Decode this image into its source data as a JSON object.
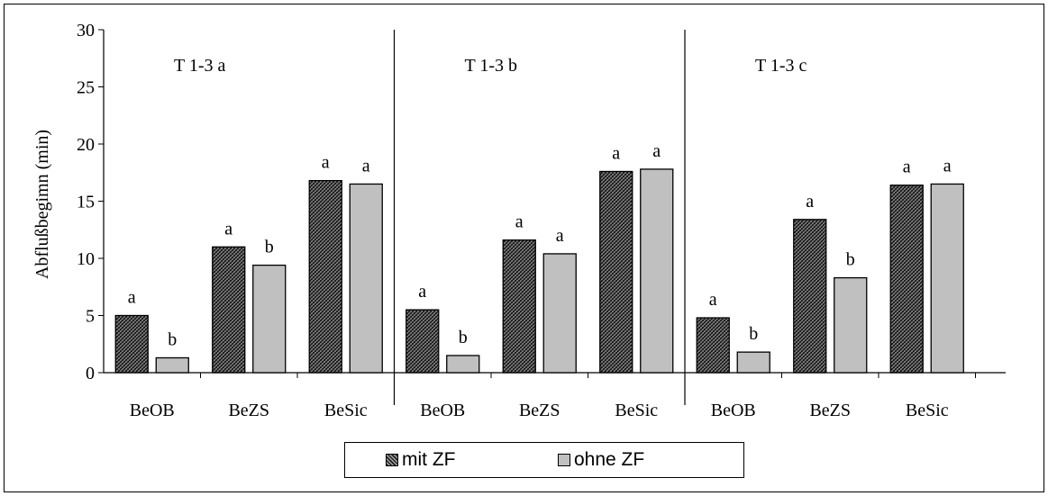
{
  "chart_data": {
    "type": "bar",
    "ylabel": "Abflußbegimn (min)",
    "ylim": [
      0,
      30
    ],
    "yticks": [
      "0",
      "5",
      "10",
      "15",
      "20",
      "25",
      "30"
    ],
    "legend_position": "bottom",
    "panels": [
      {
        "title": "T 1-3 a",
        "categories": [
          "BeOB",
          "BeZS",
          "BeSic"
        ],
        "series": [
          {
            "name": "mit ZF",
            "values": [
              5.0,
              11.0,
              16.8
            ],
            "labels": [
              "a",
              "a",
              "a"
            ]
          },
          {
            "name": "ohne ZF",
            "values": [
              1.3,
              9.4,
              16.5
            ],
            "labels": [
              "b",
              "b",
              "a"
            ]
          }
        ]
      },
      {
        "title": "T 1-3 b",
        "categories": [
          "BeOB",
          "BeZS",
          "BeSic"
        ],
        "series": [
          {
            "name": "mit ZF",
            "values": [
              5.5,
              11.6,
              17.6
            ],
            "labels": [
              "a",
              "a",
              "a"
            ]
          },
          {
            "name": "ohne ZF",
            "values": [
              1.5,
              10.4,
              17.8
            ],
            "labels": [
              "b",
              "a",
              "a"
            ]
          }
        ]
      },
      {
        "title": "T 1-3 c",
        "categories": [
          "BeOB",
          "BeZS",
          "BeSic"
        ],
        "series": [
          {
            "name": "mit ZF",
            "values": [
              4.8,
              13.4,
              16.4
            ],
            "labels": [
              "a",
              "a",
              "a"
            ]
          },
          {
            "name": "ohne ZF",
            "values": [
              1.8,
              8.3,
              16.5
            ],
            "labels": [
              "b",
              "b",
              "a"
            ]
          }
        ]
      }
    ],
    "legend": [
      {
        "name": "mit ZF",
        "pattern": "crosshatch",
        "color": "#3a3a3a"
      },
      {
        "name": "ohne ZF",
        "pattern": "solid",
        "color": "#c0c0c0"
      }
    ]
  }
}
